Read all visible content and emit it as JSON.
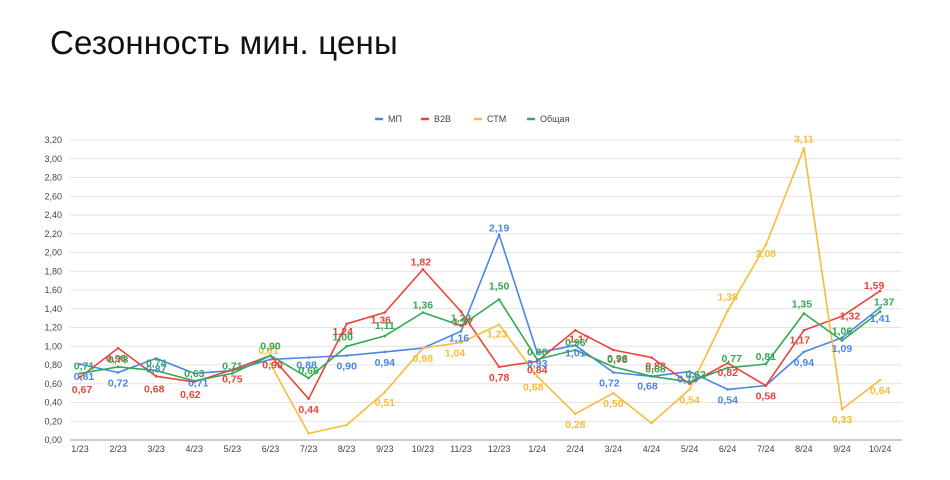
{
  "title": "Сезонность мин. цены",
  "chart_data": {
    "type": "line",
    "categories": [
      "1/23",
      "2/23",
      "3/23",
      "4/23",
      "5/23",
      "6/23",
      "7/23",
      "8/23",
      "9/23",
      "10/23",
      "11/23",
      "12/23",
      "1/24",
      "2/24",
      "3/24",
      "4/24",
      "5/24",
      "6/24",
      "7/24",
      "8/24",
      "9/24",
      "10/24"
    ],
    "ylim": [
      0,
      3.2
    ],
    "yticks": [
      "0,00",
      "0,20",
      "0,40",
      "0,60",
      "0,80",
      "1,00",
      "1,20",
      "1,40",
      "1,60",
      "1,80",
      "2,00",
      "2,20",
      "2,40",
      "2,60",
      "2,80",
      "3,00",
      "3,20"
    ],
    "grid": true,
    "legend_position": "top-center",
    "series": [
      {
        "name": "МП",
        "color": "#4a86e8",
        "values": [
          0.81,
          0.72,
          0.87,
          0.71,
          0.74,
          0.86,
          0.88,
          0.9,
          0.94,
          0.98,
          1.16,
          2.19,
          0.93,
          1.01,
          0.72,
          0.68,
          0.73,
          0.54,
          0.58,
          0.94,
          1.09,
          1.41
        ],
        "labels": [
          "0,81",
          "0,72",
          "0,87",
          "0,71",
          "",
          "",
          "0,88",
          "0,90",
          "0,94",
          "",
          "1,16",
          "2,19",
          "0,93",
          "1,01",
          "0,72",
          "0,68",
          "0,73",
          "0,54",
          "",
          "0,94",
          "1,09",
          "1,41"
        ]
      },
      {
        "name": "B2B",
        "color": "#e8443a",
        "values": [
          0.67,
          0.98,
          0.68,
          0.62,
          0.75,
          0.9,
          0.44,
          1.24,
          1.36,
          1.82,
          1.37,
          0.78,
          0.84,
          1.17,
          0.96,
          0.88,
          0.6,
          0.82,
          0.58,
          1.17,
          1.32,
          1.59
        ],
        "labels": [
          "0,67",
          "0,98",
          "0,68",
          "0,62",
          "0,75",
          "0,90",
          "0,44",
          "1,24",
          "1,36",
          "1,82",
          "1,37",
          "0,78",
          "0,84",
          "1,17",
          "0,96",
          "0,88",
          "",
          "0,82",
          "0,58",
          "1,17",
          "1,32",
          "1,59"
        ]
      },
      {
        "name": "СТМ",
        "color": "#f6bd3b",
        "values": [
          null,
          null,
          null,
          null,
          null,
          0.81,
          0.07,
          0.16,
          0.51,
          0.98,
          1.04,
          1.23,
          0.68,
          0.28,
          0.5,
          0.18,
          0.54,
          1.38,
          2.08,
          3.11,
          0.33,
          0.64
        ],
        "labels": [
          "",
          "",
          "",
          "",
          "",
          "0,81",
          "",
          "",
          "0,51",
          "0,98",
          "1,04",
          "1,23",
          "0,68",
          "0,28",
          "0,50",
          "",
          "0,54",
          "1,38",
          "2,08",
          "3,11",
          "0,33",
          "0,64"
        ]
      },
      {
        "name": "Общая",
        "color": "#34a853",
        "values": [
          0.71,
          0.78,
          0.74,
          0.63,
          0.71,
          0.9,
          0.66,
          1.0,
          1.11,
          1.36,
          1.22,
          1.5,
          0.86,
          0.96,
          0.78,
          0.68,
          0.62,
          0.77,
          0.81,
          1.35,
          1.06,
          1.37
        ],
        "labels": [
          "0,71",
          "0,78",
          "0,74",
          "0,63",
          "0,71",
          "0,90",
          "0,66",
          "1,00",
          "1,11",
          "1,36",
          "1,22",
          "1,50",
          "0,86",
          "0,96",
          "0,78",
          "0,68",
          "0,62",
          "0,77",
          "0,81",
          "1,35",
          "1,06",
          "1,37"
        ]
      }
    ]
  }
}
